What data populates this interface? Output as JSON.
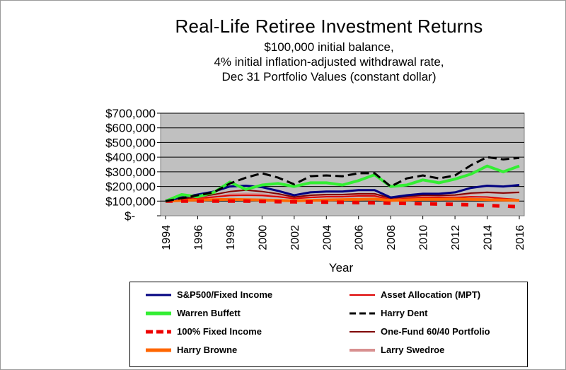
{
  "title": "Real-Life Retiree Investment Returns",
  "subtitle_lines": [
    "$100,000 initial balance,",
    "4% initial inflation-adjusted withdrawal rate,",
    "Dec 31 Portfolio Values (constant dollar)"
  ],
  "chart_data": {
    "type": "line",
    "title": "Real-Life Retiree Investment Returns",
    "xlabel": "Year",
    "ylabel": "",
    "xlim": [
      1994,
      2016
    ],
    "ylim": [
      0,
      700000
    ],
    "y_ticks": [
      0,
      100000,
      200000,
      300000,
      400000,
      500000,
      600000,
      700000
    ],
    "y_tick_labels": [
      "$-",
      "$100,000",
      "$200,000",
      "$300,000",
      "$400,000",
      "$500,000",
      "$600,000",
      "$700,000"
    ],
    "x_ticks": [
      1994,
      1996,
      1998,
      2000,
      2002,
      2004,
      2006,
      2008,
      2010,
      2012,
      2014,
      2016
    ],
    "x_tick_labels": [
      "1994",
      "1996",
      "1998",
      "2000",
      "2002",
      "2004",
      "2006",
      "2008",
      "2010",
      "2012",
      "2014",
      "2016"
    ],
    "grid": true,
    "legend_position": "bottom",
    "x": [
      1994,
      1995,
      1996,
      1997,
      1998,
      1999,
      2000,
      2001,
      2002,
      2003,
      2004,
      2005,
      2006,
      2007,
      2008,
      2009,
      2010,
      2011,
      2012,
      2013,
      2014,
      2015,
      2016
    ],
    "series": [
      {
        "name": "S&P500/Fixed Income",
        "color": "#000080",
        "dash": "solid",
        "width": 3,
        "values": [
          100000,
          125000,
          145000,
          165000,
          200000,
          205000,
          195000,
          170000,
          140000,
          160000,
          165000,
          165000,
          175000,
          175000,
          125000,
          140000,
          150000,
          150000,
          160000,
          190000,
          205000,
          200000,
          210000
        ]
      },
      {
        "name": "Asset Allocation (MPT)",
        "color": "#dd0000",
        "dash": "solid",
        "width": 2,
        "values": [
          100000,
          108000,
          118000,
          128000,
          138000,
          140000,
          138000,
          130000,
          118000,
          125000,
          130000,
          130000,
          135000,
          135000,
          110000,
          118000,
          125000,
          125000,
          125000,
          130000,
          128000,
          118000,
          110000
        ]
      },
      {
        "name": "Warren Buffett",
        "color": "#33ee33",
        "dash": "solid",
        "width": 4,
        "values": [
          100000,
          145000,
          130000,
          160000,
          230000,
          180000,
          210000,
          220000,
          200000,
          225000,
          225000,
          210000,
          240000,
          280000,
          200000,
          210000,
          245000,
          225000,
          250000,
          285000,
          340000,
          300000,
          340000
        ]
      },
      {
        "name": "Harry Dent",
        "color": "#000000",
        "dash": "dashed",
        "width": 3,
        "values": [
          100000,
          120000,
          140000,
          160000,
          220000,
          260000,
          290000,
          260000,
          215000,
          270000,
          275000,
          270000,
          290000,
          290000,
          200000,
          255000,
          275000,
          255000,
          275000,
          345000,
          400000,
          385000,
          395000
        ]
      },
      {
        "name": "100% Fixed Income",
        "color": "#ee0000",
        "dash": "dotted",
        "width": 5,
        "values": [
          100000,
          100000,
          100000,
          100000,
          100000,
          100000,
          98000,
          96000,
          95000,
          94000,
          93000,
          92000,
          90000,
          88000,
          86000,
          84000,
          82000,
          80000,
          78000,
          75000,
          70000,
          66000,
          62000
        ]
      },
      {
        "name": "One-Fund 60/40 Portfolio",
        "color": "#800000",
        "dash": "solid",
        "width": 2,
        "values": [
          100000,
          115000,
          130000,
          145000,
          165000,
          175000,
          165000,
          150000,
          128000,
          140000,
          145000,
          145000,
          150000,
          150000,
          120000,
          130000,
          140000,
          138000,
          142000,
          155000,
          160000,
          155000,
          160000
        ]
      },
      {
        "name": "Harry Browne",
        "color": "#ff6600",
        "dash": "solid",
        "width": 4,
        "values": [
          100000,
          105000,
          108000,
          110000,
          112000,
          110000,
          108000,
          105000,
          102000,
          105000,
          108000,
          110000,
          112000,
          115000,
          105000,
          108000,
          112000,
          112000,
          115000,
          112000,
          110000,
          107000,
          105000
        ]
      },
      {
        "name": "Larry Swedroe",
        "color": "#d89090",
        "dash": "solid",
        "width": 3,
        "values": [
          100000,
          110000,
          120000,
          130000,
          145000,
          150000,
          145000,
          135000,
          120000,
          130000,
          135000,
          135000,
          140000,
          140000,
          115000,
          125000,
          135000,
          133000,
          138000,
          150000,
          160000,
          155000,
          160000
        ]
      }
    ]
  },
  "legend": {
    "entries": [
      {
        "label": "S&P500/Fixed Income"
      },
      {
        "label": "Asset Allocation (MPT)"
      },
      {
        "label": "Warren Buffett"
      },
      {
        "label": "Harry Dent"
      },
      {
        "label": "100% Fixed Income"
      },
      {
        "label": "One-Fund 60/40 Portfolio"
      },
      {
        "label": "Harry Browne"
      },
      {
        "label": "Larry Swedroe"
      }
    ]
  }
}
